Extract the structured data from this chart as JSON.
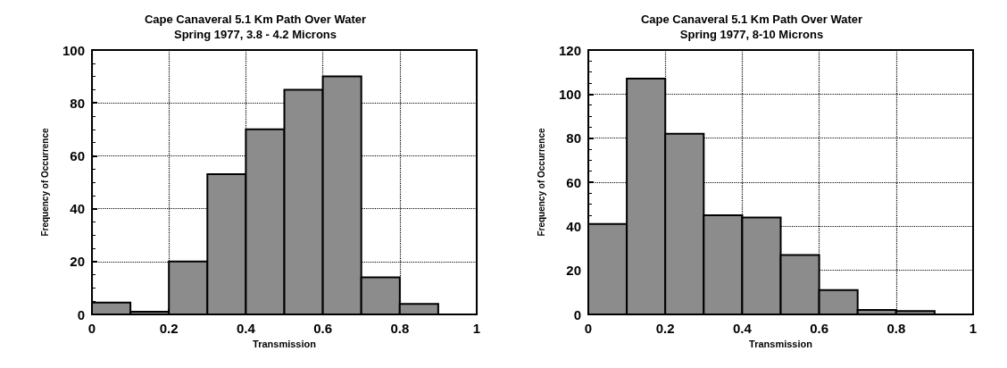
{
  "chart_data": [
    {
      "type": "histogram",
      "title": "Cape Canaveral 5.1 Km Path Over Water",
      "subtitle": "Spring 1977, 3.8 - 4.2 Microns",
      "xlabel": "Transmission",
      "ylabel": "Frequency of Occurrence",
      "bins": [
        0,
        0.1,
        0.2,
        0.3,
        0.4,
        0.5,
        0.6,
        0.7,
        0.8,
        0.9,
        1.0
      ],
      "values": [
        4.5,
        1,
        20,
        53,
        70,
        85,
        90,
        14,
        4,
        0
      ],
      "color": "#8c8c8c",
      "xlim": [
        0,
        1
      ],
      "xticks": [
        0,
        0.2,
        0.4,
        0.6,
        0.8,
        1
      ],
      "ylim": [
        0,
        100
      ],
      "yticks": [
        0,
        20,
        40,
        60,
        80,
        100
      ],
      "grid": true
    },
    {
      "type": "histogram",
      "title": "Cape Canaveral 5.1 Km Path Over Water",
      "subtitle": "Spring 1977, 8-10 Microns",
      "xlabel": "Transmission",
      "ylabel": "Frequency of Occurrence",
      "bins": [
        0,
        0.1,
        0.2,
        0.3,
        0.4,
        0.5,
        0.6,
        0.7,
        0.8,
        0.9,
        1.0
      ],
      "values": [
        41,
        107,
        82,
        45,
        44,
        27,
        11,
        2,
        1.5,
        0
      ],
      "color": "#8c8c8c",
      "xlim": [
        0,
        1
      ],
      "xticks": [
        0,
        0.2,
        0.4,
        0.6,
        0.8,
        1
      ],
      "ylim": [
        0,
        120
      ],
      "yticks": [
        0,
        20,
        40,
        60,
        80,
        100,
        120
      ],
      "grid": true
    }
  ]
}
